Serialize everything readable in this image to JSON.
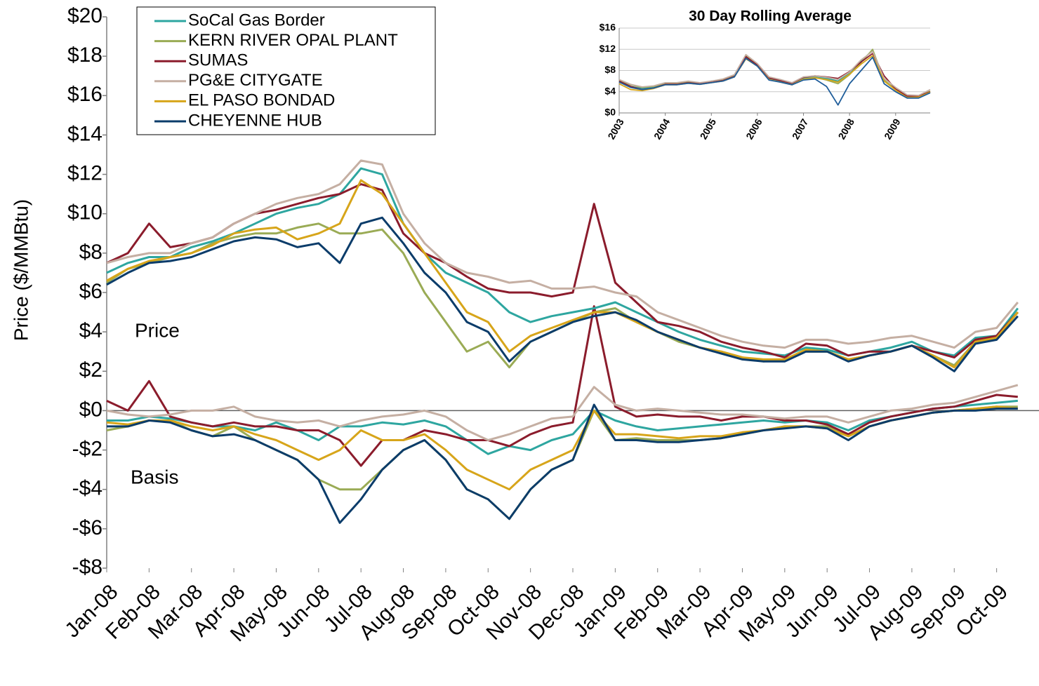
{
  "chart_data": [
    {
      "type": "line",
      "ylabel": "Price ($/MMBtu)",
      "annotations": [
        "Price",
        "Basis"
      ],
      "legend": "upper left",
      "grid": false,
      "categories": [
        "Jan-08",
        null,
        "Feb-08",
        null,
        "Mar-08",
        null,
        "Apr-08",
        null,
        "May-08",
        null,
        "Jun-08",
        null,
        "Jul-08",
        null,
        "Aug-08",
        null,
        "Sep-08",
        null,
        "Oct-08",
        null,
        "Nov-08",
        null,
        "Dec-08",
        null,
        "Jan-09",
        null,
        "Feb-09",
        null,
        "Mar-09",
        null,
        "Apr-09",
        null,
        "May-09",
        null,
        "Jun-09",
        null,
        "Jul-09",
        null,
        "Aug-09",
        null,
        "Sep-09",
        null,
        "Oct-09",
        null
      ],
      "ylim": [
        -8,
        20
      ],
      "yticks": [
        {
          "value": -8,
          "label": "-$8"
        },
        {
          "value": -6,
          "label": "-$6"
        },
        {
          "value": -4,
          "label": "-$4"
        },
        {
          "value": -2,
          "label": "-$2"
        },
        {
          "value": 0,
          "label": "$0"
        },
        {
          "value": 2,
          "label": "$2"
        },
        {
          "value": 4,
          "label": "$4"
        },
        {
          "value": 6,
          "label": "$6"
        },
        {
          "value": 8,
          "label": "$8"
        },
        {
          "value": 10,
          "label": "$10"
        },
        {
          "value": 12,
          "label": "$12"
        },
        {
          "value": 14,
          "label": "$14"
        },
        {
          "value": 16,
          "label": "$16"
        },
        {
          "value": 18,
          "label": "$18"
        },
        {
          "value": 20,
          "label": "$20"
        }
      ],
      "series": [
        {
          "name": "SoCal Gas Border",
          "color": "#2ea6a0",
          "values": [
            7,
            7.5,
            7.8,
            7.8,
            8.3,
            8.6,
            9,
            9.5,
            10,
            10.3,
            10.5,
            11,
            12.3,
            12,
            9.5,
            8,
            7,
            6.5,
            6,
            5,
            4.5,
            4.8,
            5,
            5.2,
            5.5,
            5,
            4.5,
            4,
            3.6,
            3.3,
            3,
            2.9,
            2.8,
            3.2,
            3.1,
            2.8,
            3,
            3.2,
            3.5,
            3,
            2.8,
            3.7,
            3.8,
            5.2
          ],
          "basis": [
            -0.5,
            -0.5,
            -0.3,
            -0.4,
            -0.6,
            -0.8,
            -0.8,
            -1,
            -0.6,
            -1,
            -1.5,
            -0.8,
            -0.8,
            -0.6,
            -0.7,
            -0.5,
            -0.8,
            -1.5,
            -2.2,
            -1.8,
            -2,
            -1.5,
            -1.2,
            0,
            -0.5,
            -0.8,
            -1,
            -0.9,
            -0.8,
            -0.7,
            -0.6,
            -0.5,
            -0.6,
            -0.5,
            -0.6,
            -1,
            -0.5,
            -0.3,
            -0.1,
            0.1,
            0.2,
            0.3,
            0.4,
            0.5
          ]
        },
        {
          "name": "KERN RIVER OPAL PLANT",
          "color": "#9aab55",
          "values": [
            6.5,
            7.2,
            7.5,
            7.8,
            8,
            8.5,
            8.8,
            9,
            9,
            9.3,
            9.5,
            9,
            9,
            9.2,
            8,
            6,
            4.5,
            3,
            3.5,
            2.2,
            3.5,
            4,
            4.5,
            5,
            5.2,
            4.5,
            4,
            3.5,
            3.2,
            3,
            2.7,
            2.5,
            2.6,
            3,
            3,
            2.6,
            2.8,
            3,
            3.3,
            2.8,
            2.3,
            3.5,
            3.7,
            5
          ],
          "basis": [
            -1,
            -0.8,
            -0.5,
            -0.5,
            -1,
            -1.3,
            -0.8,
            -1.5,
            -2,
            -2.5,
            -3.5,
            -4,
            -4,
            -3,
            -2,
            -1.5,
            -2.5,
            -4,
            -4.5,
            -5.5,
            -4,
            -3,
            -2.5,
            0,
            -1.5,
            -1.4,
            -1.5,
            -1.5,
            -1.5,
            -1.4,
            -1.2,
            -1,
            -0.8,
            -0.8,
            -0.8,
            -1.3,
            -0.8,
            -0.5,
            -0.3,
            -0.1,
            0,
            0.1,
            0.2,
            0.2
          ]
        },
        {
          "name": "SUMAS",
          "color": "#8b1c2c",
          "values": [
            7.5,
            8,
            9.5,
            8.3,
            8.5,
            8.8,
            9.5,
            10,
            10.2,
            10.5,
            10.8,
            11,
            11.5,
            11.2,
            9,
            8,
            7.5,
            6.8,
            6.2,
            6,
            6,
            5.8,
            6,
            10.5,
            6.5,
            5.5,
            4.5,
            4.3,
            4,
            3.5,
            3.2,
            3,
            2.7,
            3.4,
            3.3,
            2.8,
            3,
            3,
            3.3,
            3,
            2.7,
            3.6,
            3.8,
            5
          ],
          "basis": [
            0.5,
            0,
            1.5,
            -0.3,
            -0.6,
            -0.8,
            -0.6,
            -0.8,
            -0.8,
            -1,
            -1,
            -1.5,
            -2.8,
            -1.5,
            -1.5,
            -1,
            -1.2,
            -1.5,
            -1.5,
            -1.8,
            -1.2,
            -0.8,
            -0.6,
            5.3,
            0.2,
            -0.3,
            -0.2,
            -0.3,
            -0.3,
            -0.5,
            -0.3,
            -0.3,
            -0.5,
            -0.5,
            -0.7,
            -1.2,
            -0.6,
            -0.3,
            -0.1,
            0.1,
            0.2,
            0.5,
            0.8,
            0.7
          ]
        },
        {
          "name": "PG&E CITYGATE",
          "color": "#c5afa3",
          "values": [
            7.5,
            7.8,
            8,
            8,
            8.5,
            8.8,
            9.5,
            10,
            10.5,
            10.8,
            11,
            11.5,
            12.7,
            12.5,
            10,
            8.5,
            7.5,
            7,
            6.8,
            6.5,
            6.6,
            6.2,
            6.2,
            6.3,
            6,
            5.8,
            5,
            4.6,
            4.2,
            3.8,
            3.5,
            3.3,
            3.2,
            3.6,
            3.6,
            3.4,
            3.5,
            3.7,
            3.8,
            3.5,
            3.2,
            4,
            4.2,
            5.5
          ],
          "basis": [
            0,
            -0.2,
            -0.3,
            -0.2,
            0,
            0,
            0.2,
            -0.3,
            -0.5,
            -0.6,
            -0.5,
            -0.8,
            -0.5,
            -0.3,
            -0.2,
            0,
            -0.3,
            -1,
            -1.5,
            -1.2,
            -0.8,
            -0.4,
            -0.3,
            1.2,
            0.3,
            0,
            0.1,
            0,
            -0.1,
            -0.2,
            -0.2,
            -0.3,
            -0.4,
            -0.3,
            -0.3,
            -0.6,
            -0.3,
            0,
            0.1,
            0.3,
            0.4,
            0.7,
            1,
            1.3
          ]
        },
        {
          "name": "EL PASO BONDAD",
          "color": "#d7a51a",
          "values": [
            6.6,
            7.2,
            7.6,
            7.8,
            8,
            8.4,
            9,
            9.2,
            9.3,
            8.7,
            9,
            9.5,
            11.7,
            11,
            9.5,
            8,
            6.5,
            5,
            4.5,
            3,
            3.8,
            4.2,
            4.6,
            5,
            5,
            4.5,
            4,
            3.6,
            3.2,
            3,
            2.7,
            2.6,
            2.6,
            3.1,
            3,
            2.6,
            2.8,
            3,
            3.3,
            2.8,
            2.2,
            3.5,
            3.7,
            5
          ],
          "basis": [
            -0.6,
            -0.7,
            -0.5,
            -0.5,
            -0.8,
            -1,
            -0.8,
            -1.2,
            -1.5,
            -2,
            -2.5,
            -2,
            -1,
            -1.5,
            -1.5,
            -1.2,
            -2,
            -3,
            -3.5,
            -4,
            -3,
            -2.5,
            -2,
            0,
            -1.2,
            -1.2,
            -1.3,
            -1.4,
            -1.3,
            -1.3,
            -1.1,
            -1,
            -0.8,
            -0.8,
            -0.9,
            -1.3,
            -0.8,
            -0.5,
            -0.3,
            -0.1,
            0,
            0.1,
            0.2,
            0.1
          ]
        },
        {
          "name": "CHEYENNE HUB",
          "color": "#0b3c6a",
          "values": [
            6.4,
            7,
            7.5,
            7.6,
            7.8,
            8.2,
            8.6,
            8.8,
            8.7,
            8.3,
            8.5,
            7.5,
            9.5,
            9.8,
            8.5,
            7,
            6,
            4.5,
            4,
            2.5,
            3.5,
            4,
            4.5,
            4.8,
            5,
            4.6,
            4,
            3.6,
            3.2,
            2.9,
            2.6,
            2.5,
            2.5,
            3,
            3,
            2.5,
            2.8,
            3,
            3.3,
            2.7,
            2,
            3.4,
            3.6,
            4.8
          ],
          "basis": [
            -0.8,
            -0.8,
            -0.5,
            -0.6,
            -1,
            -1.3,
            -1.2,
            -1.5,
            -2,
            -2.5,
            -3.5,
            -5.7,
            -4.5,
            -3,
            -2,
            -1.5,
            -2.5,
            -4,
            -4.5,
            -5.5,
            -4,
            -3,
            -2.5,
            0.3,
            -1.5,
            -1.5,
            -1.6,
            -1.6,
            -1.5,
            -1.4,
            -1.2,
            -1,
            -0.9,
            -0.8,
            -0.9,
            -1.5,
            -0.8,
            -0.5,
            -0.3,
            -0.1,
            0,
            0,
            0.1,
            0.1
          ]
        }
      ]
    },
    {
      "type": "line",
      "title": "30 Day Rolling Average",
      "grid": true,
      "x": [
        2003,
        2003.25,
        2003.5,
        2003.75,
        2004,
        2004.25,
        2004.5,
        2004.75,
        2005,
        2005.25,
        2005.5,
        2005.75,
        2006,
        2006.25,
        2006.5,
        2006.75,
        2007,
        2007.25,
        2007.5,
        2007.75,
        2008,
        2008.25,
        2008.5,
        2008.75,
        2009,
        2009.25,
        2009.5,
        2009.75
      ],
      "xlim": [
        2003,
        2009.75
      ],
      "xticks": [
        2003,
        2004,
        2005,
        2006,
        2007,
        2008,
        2009
      ],
      "ylim": [
        0,
        16
      ],
      "yticks": [
        {
          "value": 0,
          "label": "$0"
        },
        {
          "value": 4,
          "label": "$4"
        },
        {
          "value": 8,
          "label": "$8"
        },
        {
          "value": 12,
          "label": "$12"
        },
        {
          "value": 16,
          "label": "$16"
        }
      ],
      "series": [
        {
          "color": "#2ea6a0",
          "values": [
            6,
            5,
            4.6,
            4.9,
            5.5,
            5.5,
            5.8,
            5.6,
            5.9,
            6.2,
            7,
            10.5,
            9,
            6.5,
            6,
            5.5,
            6.5,
            6.8,
            6.5,
            6,
            7.5,
            9.8,
            11.8,
            6,
            4.5,
            3,
            3,
            4
          ]
        },
        {
          "color": "#9aab55",
          "values": [
            6.2,
            5.3,
            4.8,
            5,
            5.6,
            5.6,
            5.9,
            5.6,
            6,
            6.3,
            7.1,
            10.8,
            9.2,
            6.6,
            6.1,
            5.6,
            6.4,
            6.7,
            6.2,
            5.5,
            7.2,
            9.5,
            12,
            6.2,
            4.4,
            3,
            3.1,
            4.1
          ]
        },
        {
          "color": "#8b1c2c",
          "values": [
            6,
            5,
            4.4,
            4.7,
            5.4,
            5.4,
            5.7,
            5.5,
            5.8,
            6.1,
            6.9,
            10.6,
            9,
            6.6,
            6.1,
            5.6,
            6.7,
            7,
            6.8,
            6.5,
            7.8,
            9.6,
            11.2,
            7,
            4.5,
            3.2,
            3.2,
            4
          ]
        },
        {
          "color": "#c5afa3",
          "values": [
            6.3,
            5.4,
            4.9,
            5.1,
            5.7,
            5.7,
            6,
            5.7,
            6,
            6.4,
            7.2,
            11,
            9.3,
            6.8,
            6.3,
            5.7,
            6.8,
            7,
            6.7,
            6.3,
            7.7,
            10,
            11.6,
            6.5,
            4.8,
            3.4,
            3.3,
            4.4
          ]
        },
        {
          "color": "#d7a51a",
          "values": [
            5.5,
            4.4,
            4.2,
            4.6,
            5.3,
            5.3,
            5.6,
            5.4,
            5.7,
            6,
            6.8,
            10.2,
            8.8,
            6.3,
            5.8,
            5.3,
            6.3,
            6.6,
            6.3,
            5.8,
            7.3,
            9.2,
            10.8,
            6,
            4.3,
            2.9,
            3,
            3.9
          ]
        },
        {
          "color": "#1f5d9a",
          "values": [
            5.8,
            4.8,
            4.4,
            4.7,
            5.3,
            5.3,
            5.6,
            5.4,
            5.7,
            6,
            6.8,
            10.3,
            8.8,
            6.2,
            5.8,
            5.3,
            6.2,
            6.4,
            5,
            1.5,
            5.5,
            8,
            10.5,
            5.5,
            4,
            2.8,
            2.8,
            3.8
          ]
        }
      ]
    }
  ]
}
